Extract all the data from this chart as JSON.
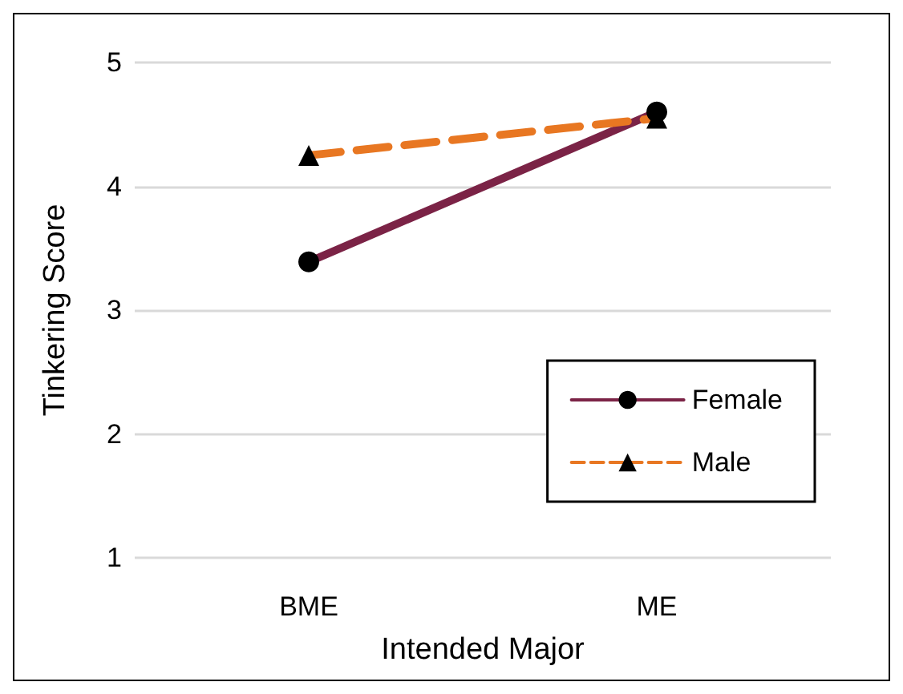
{
  "chart_data": {
    "type": "line",
    "xlabel": "Intended Major",
    "ylabel": "Tinkering Score",
    "categories": [
      "BME",
      "ME"
    ],
    "series": [
      {
        "name": "Female",
        "color": "#7b2346",
        "values": [
          3.39,
          4.6
        ],
        "marker": "circle",
        "line_style": "solid"
      },
      {
        "name": "Male",
        "color": "#e87722",
        "values": [
          4.25,
          4.55
        ],
        "marker": "triangle",
        "line_style": "dashed"
      }
    ],
    "ylim": [
      1,
      5
    ],
    "yticks": [
      1,
      2,
      3,
      4,
      5
    ],
    "grid": "y",
    "legend": "bottom right"
  }
}
